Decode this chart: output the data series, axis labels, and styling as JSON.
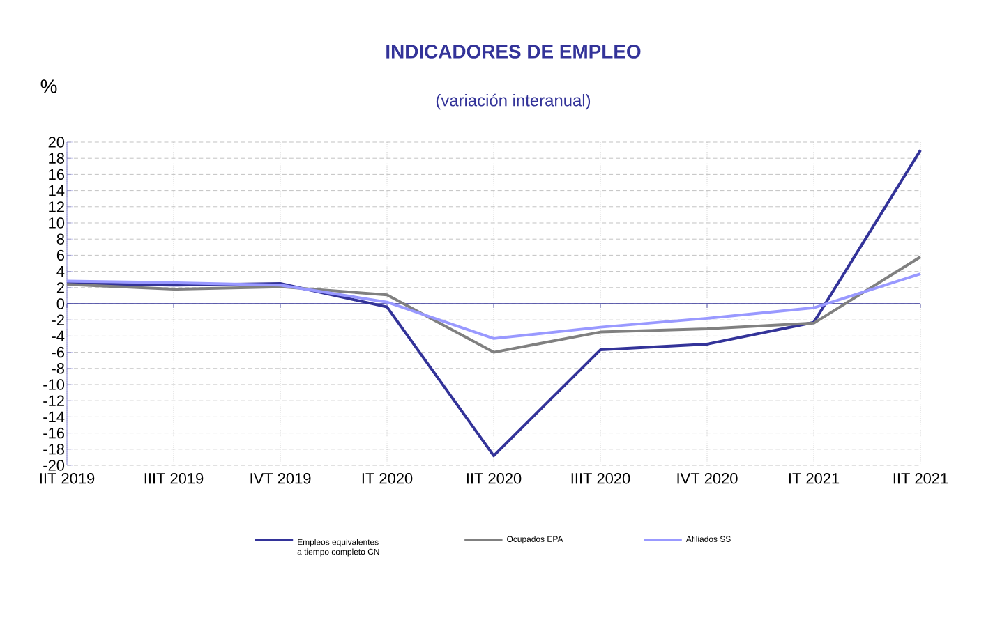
{
  "chart_data": {
    "type": "line",
    "title": "INDICADORES DE EMPLEO",
    "subtitle": "(variación interanual)",
    "ylabel": "%",
    "categories": [
      "IIT 2019",
      "IIIT 2019",
      "IVT 2019",
      "IT 2020",
      "IIT 2020",
      "IIIT 2020",
      "IVT 2020",
      "IT 2021",
      "IIT 2021"
    ],
    "series": [
      {
        "name": "Empleos equivalentes a tiempo completo CN",
        "color": "#333399",
        "values": [
          2.5,
          2.3,
          2.5,
          -0.4,
          -18.8,
          -5.7,
          -5.0,
          -2.3,
          19.0
        ]
      },
      {
        "name": "Ocupados EPA",
        "color": "#808080",
        "values": [
          2.4,
          1.8,
          2.1,
          1.1,
          -6.0,
          -3.5,
          -3.1,
          -2.4,
          5.8
        ]
      },
      {
        "name": "Afiliados SS",
        "color": "#9999ff",
        "values": [
          2.8,
          2.6,
          2.3,
          0.2,
          -4.3,
          -2.9,
          -1.8,
          -0.5,
          3.7
        ]
      }
    ],
    "ylim": [
      -20,
      20
    ],
    "yticks": [
      -20,
      -18,
      -16,
      -14,
      -12,
      -10,
      -8,
      -6,
      -4,
      -2,
      0,
      2,
      4,
      6,
      8,
      10,
      12,
      14,
      16,
      18,
      20
    ],
    "ref_lines": [
      {
        "axis": "y",
        "value": 0,
        "color": "#333399"
      }
    ],
    "grid": true,
    "legend": "bottom",
    "marker": "none",
    "line_style": "solid"
  }
}
